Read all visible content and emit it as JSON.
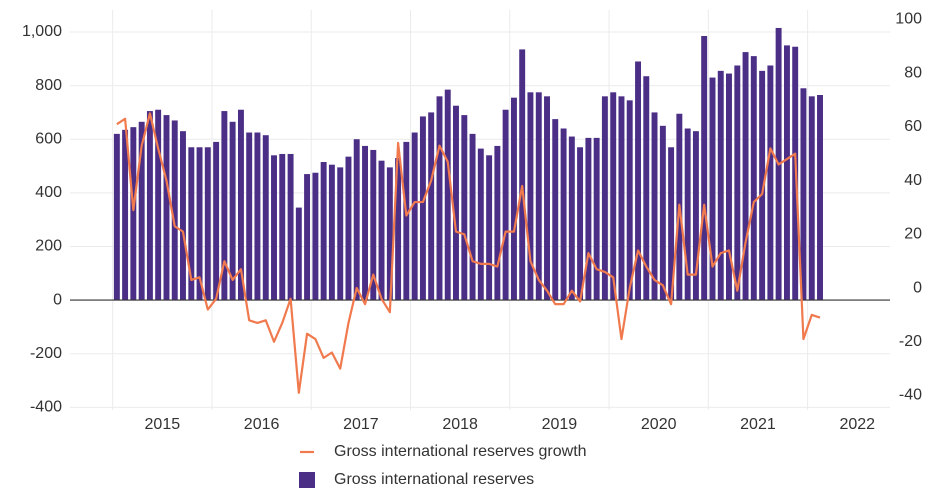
{
  "chart_data": {
    "type": "bar",
    "x": [
      2015.042,
      2015.125,
      2015.208,
      2015.292,
      2015.375,
      2015.458,
      2015.542,
      2015.625,
      2015.708,
      2015.792,
      2015.875,
      2015.958,
      2016.042,
      2016.125,
      2016.208,
      2016.292,
      2016.375,
      2016.458,
      2016.542,
      2016.625,
      2016.708,
      2016.792,
      2016.875,
      2016.958,
      2017.042,
      2017.125,
      2017.208,
      2017.292,
      2017.375,
      2017.458,
      2017.542,
      2017.625,
      2017.708,
      2017.792,
      2017.875,
      2017.958,
      2018.042,
      2018.125,
      2018.208,
      2018.292,
      2018.375,
      2018.458,
      2018.542,
      2018.625,
      2018.708,
      2018.792,
      2018.875,
      2018.958,
      2019.042,
      2019.125,
      2019.208,
      2019.292,
      2019.375,
      2019.458,
      2019.542,
      2019.625,
      2019.708,
      2019.792,
      2019.875,
      2019.958,
      2020.042,
      2020.125,
      2020.208,
      2020.292,
      2020.375,
      2020.458,
      2020.542,
      2020.625,
      2020.708,
      2020.792,
      2020.875,
      2020.958,
      2021.042,
      2021.125,
      2021.208,
      2021.292,
      2021.375,
      2021.458,
      2021.542,
      2021.625,
      2021.708,
      2021.792,
      2021.875,
      2021.958,
      2022.042,
      2022.125
    ],
    "series": [
      {
        "name": "Gross international reserves growth",
        "type": "line",
        "axis": "y2",
        "color": "#f07a4e",
        "values": [
          61,
          63,
          29,
          53,
          65,
          52,
          40,
          23,
          21,
          3,
          4,
          -8,
          -4,
          10,
          3,
          7,
          -12,
          -13,
          -12,
          -20,
          -13,
          -4,
          -39,
          -17,
          -19,
          -26,
          -24,
          -30,
          -13,
          0,
          -6,
          5,
          -4,
          -9,
          54,
          27,
          32,
          32,
          40,
          53,
          47,
          21,
          20,
          10,
          9,
          9,
          8,
          21,
          21,
          38,
          10,
          3,
          -1,
          -6,
          -6,
          -1,
          -5,
          13,
          7,
          6,
          4,
          -19,
          0,
          14,
          8,
          3,
          1,
          -6,
          31,
          5,
          5,
          31,
          8,
          13,
          14,
          -1,
          17,
          32,
          35,
          52,
          46,
          48,
          50,
          -19,
          -10,
          -11
        ]
      },
      {
        "name": "Gross international reserves",
        "type": "bar",
        "color": "#4b2e85",
        "values": [
          620,
          635,
          645,
          665,
          705,
          710,
          690,
          670,
          630,
          570,
          570,
          570,
          590,
          705,
          665,
          710,
          625,
          625,
          615,
          540,
          545,
          545,
          345,
          470,
          475,
          515,
          505,
          495,
          535,
          600,
          575,
          560,
          520,
          495,
          530,
          590,
          625,
          685,
          700,
          760,
          785,
          725,
          690,
          620,
          565,
          540,
          575,
          710,
          755,
          935,
          775,
          775,
          760,
          675,
          640,
          610,
          570,
          605,
          605,
          760,
          775,
          760,
          745,
          890,
          835,
          700,
          650,
          570,
          695,
          640,
          630,
          985,
          830,
          855,
          845,
          875,
          925,
          910,
          855,
          875,
          1015,
          950,
          945,
          790,
          760,
          765
        ]
      }
    ],
    "xlim": [
      2014.57,
      2022.83
    ],
    "xticks": [
      {
        "value": 2015.5,
        "label": "2015"
      },
      {
        "value": 2016.5,
        "label": "2016"
      },
      {
        "value": 2017.5,
        "label": "2017"
      },
      {
        "value": 2018.5,
        "label": "2018"
      },
      {
        "value": 2019.5,
        "label": "2019"
      },
      {
        "value": 2020.5,
        "label": "2020"
      },
      {
        "value": 2021.5,
        "label": "2021"
      },
      {
        "value": 2022.5,
        "label": "2022"
      }
    ],
    "x_grid": [
      2015,
      2016,
      2017,
      2018,
      2019,
      2020,
      2021,
      2022
    ],
    "ylim": [
      -410,
      1082
    ],
    "yticks": [
      -400,
      -200,
      0,
      200,
      400,
      600,
      800,
      {
        "value": 1000,
        "label": "1,000"
      }
    ],
    "y2lim": [
      -45.4,
      103.5
    ],
    "y2ticks": [
      -40,
      -20,
      0,
      20,
      40,
      60,
      80,
      100
    ],
    "grid": true,
    "legend": "bottom"
  }
}
